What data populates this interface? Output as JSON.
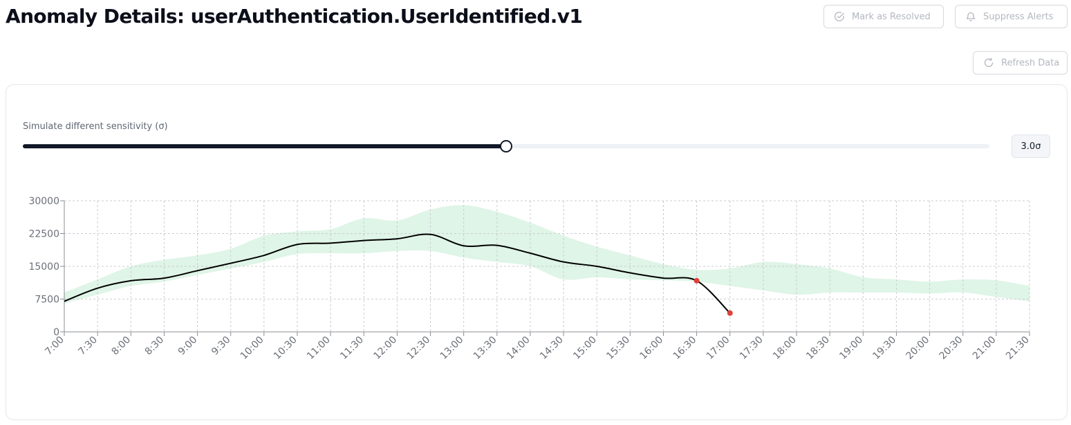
{
  "header": {
    "title": "Anomaly Details: userAuthentication.UserIdentified.v1",
    "mark_resolved_label": "Mark as Resolved",
    "suppress_alerts_label": "Suppress Alerts",
    "refresh_label": "Refresh Data"
  },
  "icons": {
    "mark_resolved": "check-circle-icon",
    "suppress_alerts": "bell-icon",
    "refresh": "refresh-icon"
  },
  "sensitivity": {
    "label": "Simulate different sensitivity (σ)",
    "value_label": "3.0σ",
    "fraction": 0.5
  },
  "colors": {
    "line": "#000000",
    "band": "#dff5e7",
    "anomaly": "#e0403a",
    "slider": "#111827"
  },
  "chart_data": {
    "type": "line",
    "title": "",
    "xlabel": "",
    "ylabel": "",
    "ylim": [
      0,
      30000
    ],
    "yticks": [
      "0",
      "7500",
      "15000",
      "22500",
      "30000"
    ],
    "grid": true,
    "categories": [
      "7:00",
      "7:30",
      "8:00",
      "8:30",
      "9:00",
      "9:30",
      "10:00",
      "10:30",
      "11:00",
      "11:30",
      "12:00",
      "12:30",
      "13:00",
      "13:30",
      "14:00",
      "14:30",
      "15:00",
      "15:30",
      "16:00",
      "16:30",
      "17:00",
      "17:30",
      "18:00",
      "18:30",
      "19:00",
      "19:30",
      "20:00",
      "20:30",
      "21:00",
      "21:30"
    ],
    "series": [
      {
        "values": [
          7000,
          10000,
          11700,
          12300,
          14000,
          15700,
          17500,
          20000,
          20300,
          20900,
          21300,
          22300,
          19700,
          19800,
          18000,
          16000,
          15000,
          13500,
          12300,
          11700,
          4300,
          null,
          null,
          null,
          null,
          null,
          null,
          null,
          null,
          null
        ]
      }
    ],
    "band": {
      "upper": [
        9000,
        12000,
        15000,
        16500,
        17500,
        19000,
        22000,
        23000,
        23500,
        26000,
        25500,
        28000,
        29000,
        27500,
        25000,
        22000,
        19500,
        17500,
        15500,
        14200,
        14500,
        16000,
        15500,
        14500,
        12500,
        12000,
        11500,
        12000,
        11800,
        10500
      ],
      "lower": [
        6500,
        8500,
        10500,
        11500,
        13000,
        14500,
        16000,
        17800,
        18000,
        18000,
        18500,
        18500,
        17000,
        16000,
        15000,
        12000,
        12500,
        12000,
        11800,
        11500,
        10500,
        9500,
        8500,
        9000,
        9000,
        9000,
        8800,
        9000,
        8000,
        7000
      ]
    },
    "anomalies": [
      {
        "x": "16:30",
        "y": 11700
      },
      {
        "x": "17:00",
        "y": 4300
      }
    ]
  }
}
